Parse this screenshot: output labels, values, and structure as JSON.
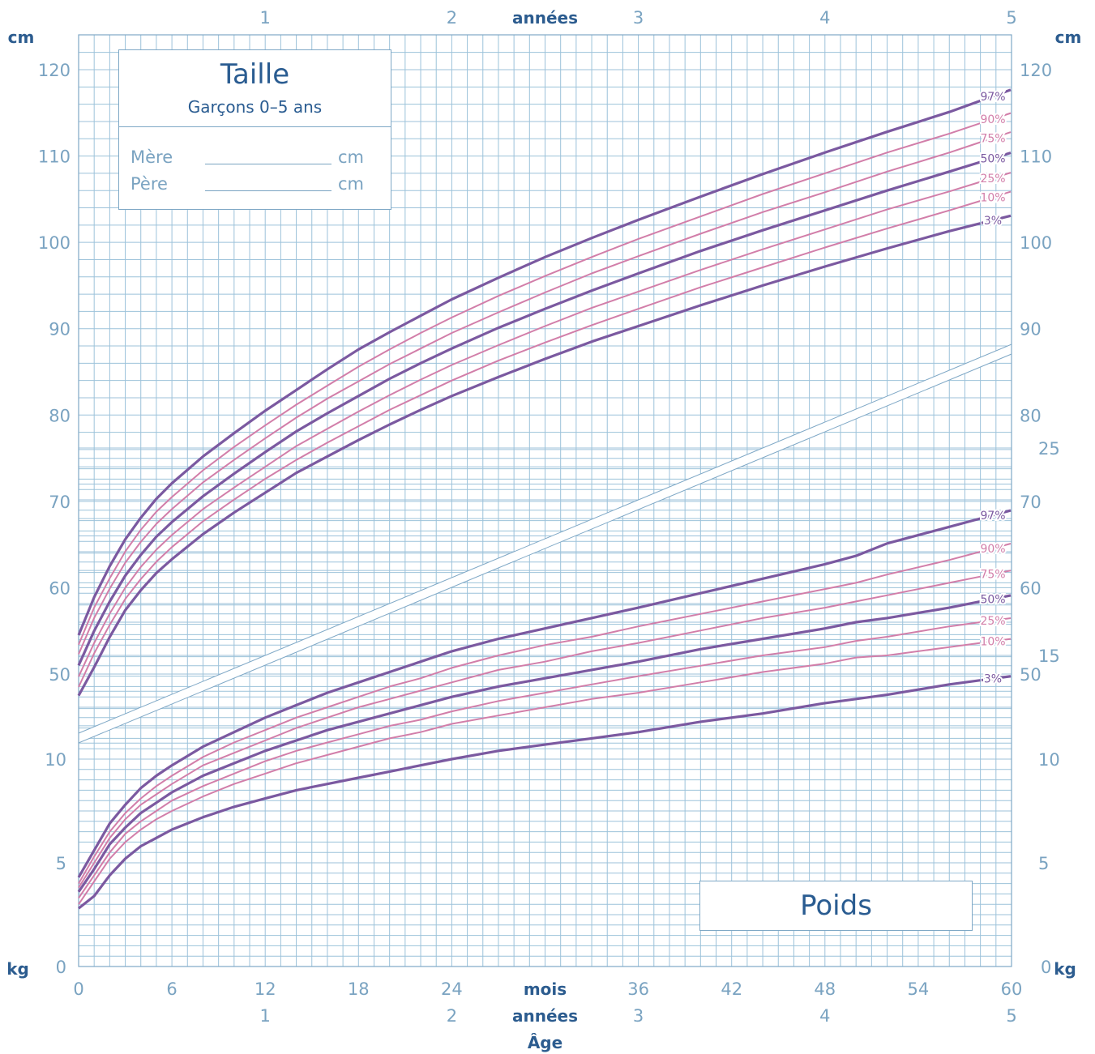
{
  "taille_box": {
    "title": "Taille",
    "subtitle": "Garçons 0–5 ans",
    "mother_label": "Mère",
    "father_label": "Père",
    "unit": "cm"
  },
  "poids_box": {
    "title": "Poids"
  },
  "axis_text": {
    "top_unit": "années",
    "bottom_unit_months": "mois",
    "bottom_unit_years": "années",
    "bottom_title": "Âge",
    "height_unit": "cm",
    "weight_unit": "kg"
  },
  "colors": {
    "grid": "#9cc2da",
    "axis_text": "#7aa3c1",
    "title": "#2a5c91",
    "major_curve": "#7b59a0",
    "minor_curve": "#d27ea9"
  },
  "chart_data": [
    {
      "type": "line",
      "title": "Taille",
      "subtitle": "Garçons 0–5 ans",
      "xlabel": "Âge",
      "x_unit": "mois",
      "ylabel": "cm",
      "xlim": [
        0,
        60
      ],
      "ylim": [
        40,
        120
      ],
      "x_ticks": [
        0,
        6,
        12,
        18,
        24,
        36,
        42,
        48,
        54,
        60
      ],
      "x_ticks_years": [
        1,
        2,
        3,
        4,
        5
      ],
      "y_ticks": [
        50,
        60,
        70,
        80,
        90,
        100,
        110,
        120
      ],
      "grid": true,
      "x": [
        0,
        1,
        2,
        3,
        4,
        5,
        6,
        8,
        10,
        12,
        14,
        16,
        18,
        20,
        22,
        24,
        27,
        30,
        33,
        36,
        40,
        44,
        48,
        52,
        56,
        58
      ],
      "series": [
        {
          "name": "97%",
          "weight": "major",
          "values": [
            54.5,
            58.9,
            62.5,
            65.6,
            68.1,
            70.3,
            72.1,
            75.2,
            77.9,
            80.5,
            82.9,
            85.3,
            87.6,
            89.6,
            91.5,
            93.4,
            95.9,
            98.3,
            100.5,
            102.6,
            105.3,
            107.9,
            110.4,
            112.8,
            115.1,
            116.4
          ]
        },
        {
          "name": "90%",
          "weight": "minor",
          "values": [
            53.4,
            57.7,
            61.1,
            64.2,
            66.7,
            68.8,
            70.5,
            73.6,
            76.3,
            78.8,
            81.2,
            83.4,
            85.6,
            87.6,
            89.5,
            91.3,
            93.8,
            96.1,
            98.3,
            100.4,
            103.0,
            105.6,
            108.0,
            110.4,
            112.6,
            113.8
          ]
        },
        {
          "name": "75%",
          "weight": "minor",
          "values": [
            52.3,
            56.5,
            59.9,
            62.9,
            65.3,
            67.4,
            69.1,
            72.2,
            74.8,
            77.3,
            79.7,
            81.9,
            83.9,
            85.9,
            87.7,
            89.5,
            91.9,
            94.2,
            96.4,
            98.4,
            101.0,
            103.5,
            105.8,
            108.2,
            110.4,
            111.6
          ]
        },
        {
          "name": "50%",
          "weight": "major",
          "values": [
            51.0,
            55.0,
            58.4,
            61.4,
            63.8,
            65.9,
            67.6,
            70.6,
            73.2,
            75.7,
            78.1,
            80.2,
            82.2,
            84.2,
            86.0,
            87.7,
            90.1,
            92.3,
            94.4,
            96.4,
            99.0,
            101.4,
            103.7,
            106.0,
            108.2,
            109.3
          ]
        },
        {
          "name": "25%",
          "weight": "minor",
          "values": [
            49.7,
            53.6,
            57.0,
            60.0,
            62.4,
            64.4,
            66.1,
            69.1,
            71.6,
            74.0,
            76.4,
            78.4,
            80.4,
            82.3,
            84.1,
            85.8,
            88.1,
            90.3,
            92.4,
            94.3,
            96.8,
            99.2,
            101.5,
            103.8,
            105.9,
            107.0
          ]
        },
        {
          "name": "10%",
          "weight": "minor",
          "values": [
            48.5,
            52.4,
            55.7,
            58.7,
            61.0,
            63.0,
            64.7,
            67.7,
            70.2,
            72.6,
            74.8,
            76.8,
            78.7,
            80.6,
            82.3,
            84.0,
            86.3,
            88.4,
            90.4,
            92.3,
            94.8,
            97.1,
            99.4,
            101.6,
            103.7,
            104.8
          ]
        },
        {
          "name": "3%",
          "weight": "major",
          "values": [
            47.5,
            50.8,
            54.3,
            57.4,
            59.7,
            61.7,
            63.3,
            66.2,
            68.7,
            71.0,
            73.3,
            75.2,
            77.1,
            78.9,
            80.6,
            82.2,
            84.4,
            86.5,
            88.5,
            90.3,
            92.7,
            95.0,
            97.2,
            99.3,
            101.3,
            102.2
          ]
        }
      ]
    },
    {
      "type": "line",
      "title": "Poids",
      "xlabel": "Âge",
      "x_unit": "mois",
      "ylabel": "kg",
      "xlim": [
        0,
        60
      ],
      "ylim": [
        0,
        25
      ],
      "x_ticks": [
        0,
        6,
        12,
        18,
        24,
        36,
        42,
        48,
        54,
        60
      ],
      "x_ticks_years": [
        1,
        2,
        3,
        4,
        5
      ],
      "y_ticks": [
        5,
        10,
        15,
        25
      ],
      "grid": true,
      "x": [
        0,
        1,
        2,
        3,
        4,
        5,
        6,
        8,
        10,
        12,
        14,
        16,
        18,
        20,
        22,
        24,
        27,
        30,
        33,
        36,
        40,
        44,
        48,
        50,
        52,
        56,
        58
      ],
      "series": [
        {
          "name": "97%",
          "weight": "major",
          "values": [
            4.3,
            5.6,
            6.9,
            7.8,
            8.6,
            9.2,
            9.7,
            10.6,
            11.3,
            12.0,
            12.6,
            13.2,
            13.7,
            14.2,
            14.7,
            15.2,
            15.8,
            16.3,
            16.8,
            17.3,
            18.0,
            18.7,
            19.4,
            19.8,
            20.4,
            21.2,
            21.6
          ]
        },
        {
          "name": "90%",
          "weight": "minor",
          "values": [
            4.0,
            5.3,
            6.5,
            7.4,
            8.1,
            8.7,
            9.2,
            10.1,
            10.8,
            11.4,
            12.0,
            12.5,
            13.0,
            13.5,
            13.9,
            14.4,
            15.0,
            15.5,
            15.9,
            16.4,
            17.0,
            17.6,
            18.2,
            18.5,
            18.9,
            19.6,
            20.0
          ]
        },
        {
          "name": "75%",
          "weight": "minor",
          "values": [
            3.8,
            5.0,
            6.2,
            7.1,
            7.8,
            8.3,
            8.8,
            9.7,
            10.3,
            10.9,
            11.5,
            12.0,
            12.5,
            12.9,
            13.3,
            13.7,
            14.3,
            14.7,
            15.2,
            15.6,
            16.2,
            16.8,
            17.3,
            17.6,
            17.9,
            18.5,
            18.8
          ]
        },
        {
          "name": "50%",
          "weight": "major",
          "values": [
            3.6,
            4.7,
            5.9,
            6.7,
            7.4,
            7.9,
            8.4,
            9.2,
            9.8,
            10.4,
            10.9,
            11.4,
            11.8,
            12.2,
            12.6,
            13.0,
            13.5,
            13.9,
            14.3,
            14.7,
            15.3,
            15.8,
            16.3,
            16.6,
            16.8,
            17.3,
            17.6
          ]
        },
        {
          "name": "25%",
          "weight": "minor",
          "values": [
            3.3,
            4.4,
            5.5,
            6.4,
            7.0,
            7.5,
            8.0,
            8.7,
            9.3,
            9.9,
            10.4,
            10.8,
            11.2,
            11.6,
            11.9,
            12.3,
            12.8,
            13.2,
            13.6,
            14.0,
            14.5,
            15.0,
            15.4,
            15.7,
            15.9,
            16.4,
            16.6
          ]
        },
        {
          "name": "10%",
          "weight": "minor",
          "values": [
            3.0,
            4.1,
            5.2,
            6.0,
            6.6,
            7.1,
            7.5,
            8.2,
            8.8,
            9.3,
            9.8,
            10.2,
            10.6,
            11.0,
            11.3,
            11.7,
            12.1,
            12.5,
            12.9,
            13.2,
            13.7,
            14.2,
            14.6,
            14.9,
            15.0,
            15.4,
            15.6
          ]
        },
        {
          "name": "3%",
          "weight": "major",
          "values": [
            2.8,
            3.4,
            4.4,
            5.2,
            5.8,
            6.2,
            6.6,
            7.2,
            7.7,
            8.1,
            8.5,
            8.8,
            9.1,
            9.4,
            9.7,
            10.0,
            10.4,
            10.7,
            11.0,
            11.3,
            11.8,
            12.2,
            12.7,
            12.9,
            13.1,
            13.6,
            13.8
          ]
        }
      ]
    }
  ]
}
